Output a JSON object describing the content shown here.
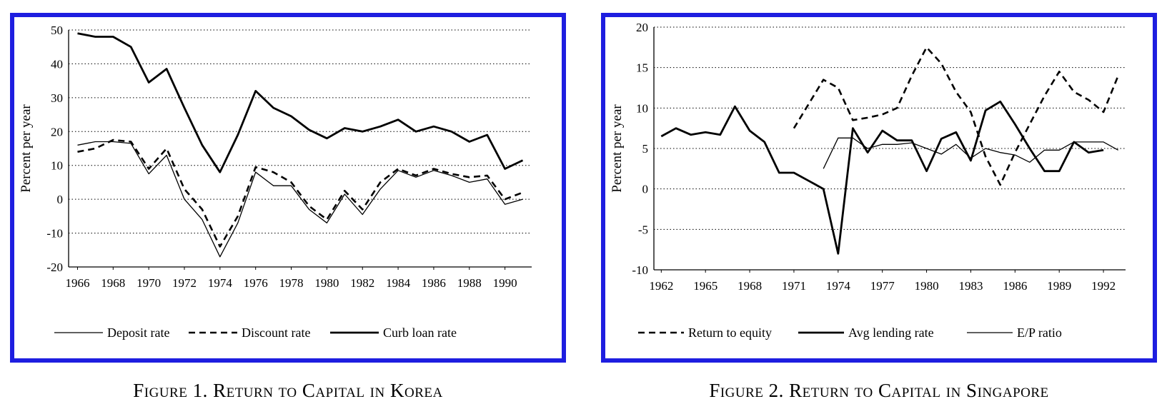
{
  "figures": [
    {
      "caption": "Figure 1. Return to Capital in Korea"
    },
    {
      "caption": "Figure 2. Return to Capital in Singapore"
    }
  ],
  "chart_data": [
    {
      "type": "line",
      "title": "",
      "xlabel": "",
      "ylabel": "Percent per year",
      "ylim": [
        -20,
        50
      ],
      "xlim": [
        1965.5,
        1991.5
      ],
      "yticks": [
        -20,
        -10,
        0,
        10,
        20,
        30,
        40,
        50
      ],
      "xticks": [
        1966,
        1968,
        1970,
        1972,
        1974,
        1976,
        1978,
        1980,
        1982,
        1984,
        1986,
        1988,
        1990
      ],
      "grid": "horizontal dotted",
      "legend": "bottom",
      "x": [
        1966,
        1967,
        1968,
        1969,
        1970,
        1971,
        1972,
        1973,
        1974,
        1975,
        1976,
        1977,
        1978,
        1979,
        1980,
        1981,
        1982,
        1983,
        1984,
        1985,
        1986,
        1987,
        1988,
        1989,
        1990,
        1991
      ],
      "series": [
        {
          "name": "Deposit rate",
          "style": "thin",
          "values": [
            16,
            17,
            17,
            16.5,
            7.5,
            13,
            0,
            -6,
            -17,
            -7,
            8,
            4,
            4,
            -3,
            -7,
            1.5,
            -4.5,
            3,
            8.5,
            6.5,
            8.5,
            7,
            5,
            6,
            -1.5,
            0
          ]
        },
        {
          "name": "Discount rate",
          "style": "dashed",
          "values": [
            14,
            15,
            17.5,
            17,
            9,
            15,
            3,
            -3,
            -14,
            -5,
            9.5,
            8,
            5,
            -2,
            -6,
            2.5,
            -3,
            5,
            9,
            7,
            9,
            7.5,
            6.5,
            7,
            0,
            2
          ]
        },
        {
          "name": "Curb loan rate",
          "style": "thick",
          "values": [
            49,
            48,
            48,
            45,
            34.5,
            38.5,
            27,
            16,
            8,
            19,
            32,
            27,
            24.5,
            20.5,
            18,
            21,
            20,
            21.5,
            23.5,
            20,
            21.5,
            20,
            17,
            19,
            9,
            11.5
          ]
        }
      ]
    },
    {
      "type": "line",
      "title": "",
      "xlabel": "",
      "ylabel": "Percent per year",
      "ylim": [
        -10,
        20
      ],
      "xlim": [
        1961.5,
        1993.5
      ],
      "yticks": [
        -10,
        -5,
        0,
        5,
        10,
        15,
        20
      ],
      "xticks": [
        1962,
        1965,
        1968,
        1971,
        1974,
        1977,
        1980,
        1983,
        1986,
        1989,
        1992
      ],
      "grid": "horizontal dotted",
      "legend": "bottom",
      "series": [
        {
          "name": "Return to equity",
          "style": "dashed",
          "x": [
            1971,
            1972,
            1973,
            1974,
            1975,
            1976,
            1977,
            1978,
            1979,
            1980,
            1981,
            1982,
            1983,
            1984,
            1985,
            1986,
            1987,
            1988,
            1989,
            1990,
            1991,
            1992,
            1993
          ],
          "values": [
            7.5,
            10.5,
            13.5,
            12.5,
            8.5,
            8.8,
            9.2,
            10,
            14,
            17.5,
            15.5,
            12,
            9.5,
            4,
            0.5,
            4.5,
            8,
            11.5,
            14.5,
            12,
            11,
            9.5,
            14
          ]
        },
        {
          "name": "Avg lending rate",
          "style": "thick",
          "x": [
            1962,
            1963,
            1964,
            1965,
            1966,
            1967,
            1968,
            1969,
            1970,
            1971,
            1972,
            1973,
            1974,
            1975,
            1976,
            1977,
            1978,
            1979,
            1980,
            1981,
            1982,
            1983,
            1984,
            1985,
            1986,
            1987,
            1988,
            1989,
            1990,
            1991,
            1992
          ],
          "values": [
            6.5,
            7.5,
            6.7,
            7,
            6.7,
            10.2,
            7.2,
            5.8,
            2,
            2,
            1,
            0,
            -8,
            7.5,
            4.5,
            7.2,
            6,
            6,
            2.2,
            6.2,
            7,
            3.5,
            9.7,
            10.8,
            8,
            5,
            2.2,
            2.2,
            5.8,
            4.5,
            4.8
          ]
        },
        {
          "name": "E/P ratio",
          "style": "thin",
          "x": [
            1973,
            1974,
            1975,
            1976,
            1977,
            1978,
            1979,
            1980,
            1981,
            1982,
            1983,
            1984,
            1985,
            1986,
            1987,
            1988,
            1989,
            1990,
            1991,
            1992,
            1993
          ],
          "values": [
            2.5,
            6.3,
            6.3,
            5,
            5.5,
            5.5,
            5.7,
            5,
            4.3,
            5.5,
            3.8,
            5,
            4.5,
            4.2,
            3.3,
            4.8,
            4.8,
            5.8,
            5.8,
            5.8,
            4.8
          ]
        }
      ]
    }
  ]
}
